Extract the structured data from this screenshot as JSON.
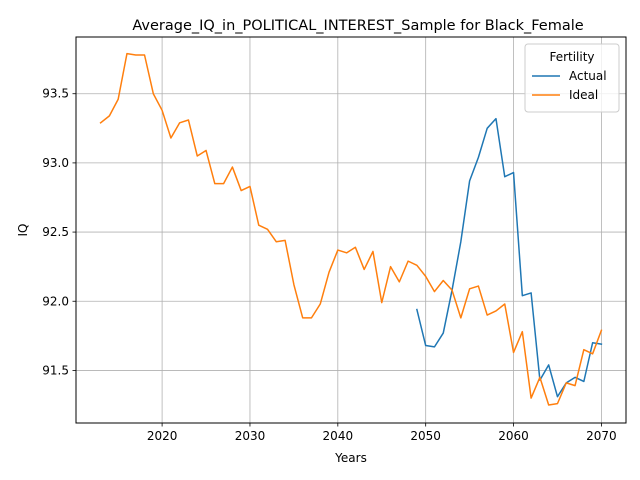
{
  "chart_data": {
    "type": "line",
    "title": "Average_IQ_in_POLITICAL_INTEREST_Sample for Black_Female",
    "xlabel": "Years",
    "ylabel": "IQ",
    "xlim": [
      2010.2,
      2072.8
    ],
    "ylim": [
      91.12,
      93.91
    ],
    "xticks": [
      2020,
      2030,
      2040,
      2050,
      2060,
      2070
    ],
    "yticks": [
      91.5,
      92.0,
      92.5,
      93.0,
      93.5
    ],
    "ytick_labels": [
      "91.5",
      "92.0",
      "92.5",
      "93.0",
      "93.5"
    ],
    "grid": true,
    "legend": {
      "title": "Fertility",
      "placement": "top-right"
    },
    "series": [
      {
        "name": "Actual",
        "color": "#1f77b4",
        "x": [
          2049,
          2050,
          2051,
          2052,
          2053,
          2054,
          2055,
          2056,
          2057,
          2058,
          2059,
          2060,
          2061,
          2062,
          2063,
          2064,
          2065,
          2066,
          2067,
          2068,
          2069,
          2070
        ],
        "values": [
          91.94,
          91.68,
          91.67,
          91.77,
          92.08,
          92.43,
          92.87,
          93.04,
          93.25,
          93.32,
          92.9,
          92.93,
          92.04,
          92.06,
          91.43,
          91.54,
          91.31,
          91.41,
          91.45,
          91.42,
          91.7,
          91.69
        ]
      },
      {
        "name": "Ideal",
        "color": "#ff7f0e",
        "x": [
          2013,
          2014,
          2015,
          2016,
          2017,
          2018,
          2019,
          2020,
          2021,
          2022,
          2023,
          2024,
          2025,
          2026,
          2027,
          2028,
          2029,
          2030,
          2031,
          2032,
          2033,
          2034,
          2035,
          2036,
          2037,
          2038,
          2039,
          2040,
          2041,
          2042,
          2043,
          2044,
          2045,
          2046,
          2047,
          2048,
          2049,
          2050,
          2051,
          2052,
          2053,
          2054,
          2055,
          2056,
          2057,
          2058,
          2059,
          2060,
          2061,
          2062,
          2063,
          2064,
          2065,
          2066,
          2067,
          2068,
          2069,
          2070
        ],
        "values": [
          93.29,
          93.34,
          93.46,
          93.79,
          93.78,
          93.78,
          93.5,
          93.38,
          93.18,
          93.29,
          93.31,
          93.05,
          93.09,
          92.85,
          92.85,
          92.97,
          92.8,
          92.83,
          92.55,
          92.52,
          92.43,
          92.44,
          92.12,
          91.88,
          91.88,
          91.98,
          92.21,
          92.37,
          92.35,
          92.39,
          92.23,
          92.36,
          91.99,
          92.25,
          92.14,
          92.29,
          92.26,
          92.18,
          92.07,
          92.15,
          92.08,
          91.88,
          92.09,
          92.11,
          91.9,
          91.93,
          91.98,
          91.63,
          91.78,
          91.3,
          91.45,
          91.25,
          91.26,
          91.41,
          91.39,
          91.65,
          91.62,
          91.79
        ]
      }
    ]
  }
}
